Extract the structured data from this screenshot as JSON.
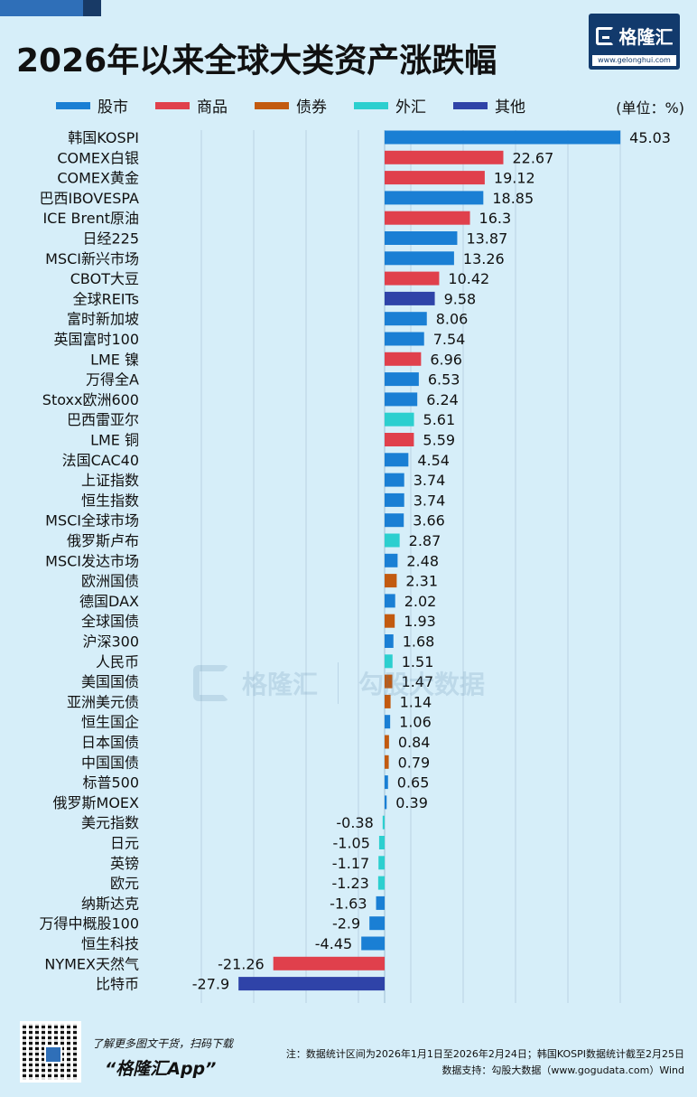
{
  "title": "2026年以来全球大类资产涨跌幅",
  "brand": {
    "name": "格隆汇",
    "url": "www.gelonghui.com"
  },
  "unit": "(单位：%)",
  "legend": [
    {
      "label": "股市",
      "color": "#1a7fd4"
    },
    {
      "label": "商品",
      "color": "#e0404c"
    },
    {
      "label": "债券",
      "color": "#c25a10"
    },
    {
      "label": "外汇",
      "color": "#2ccfcf"
    },
    {
      "label": "其他",
      "color": "#2f43a8"
    }
  ],
  "watermark": {
    "left": "格隆汇",
    "left_url": "www.gelonghui.com",
    "right": "勾股大数据",
    "right_url": "WWW.GOGUDATA.COM"
  },
  "footer": {
    "promo": "了解更多图文干货，扫码下载",
    "app": "“格隆汇App”",
    "note": "注：数据统计区间为2026年1月1日至2026年2月24日；韩国KOSPI数据统计截至2月25日",
    "source": "数据支持：勾股大数据（www.gogudata.com）Wind"
  },
  "chart_data": {
    "type": "bar",
    "orientation": "horizontal",
    "title": "2026年以来全球大类资产涨跌幅",
    "unit": "%",
    "xlim": [
      -35,
      50
    ],
    "grid": true,
    "legend_position": "top",
    "categories": [
      "韩国KOSPI",
      "COMEX白银",
      "COMEX黄金",
      "巴西IBOVESPA",
      "ICE Brent原油",
      "日经225",
      "MSCI新兴市场",
      "CBOT大豆",
      "全球REITs",
      "富时新加坡",
      "英国富时100",
      "LME 镍",
      "万得全A",
      "Stoxx欧洲600",
      "巴西雷亚尔",
      "LME 铜",
      "法国CAC40",
      "上证指数",
      "恒生指数",
      "MSCI全球市场",
      "俄罗斯卢布",
      "MSCI发达市场",
      "欧洲国债",
      "德国DAX",
      "全球国债",
      "沪深300",
      "人民币",
      "美国国债",
      "亚洲美元债",
      "恒生国企",
      "日本国债",
      "中国国债",
      "标普500",
      "俄罗斯MOEX",
      "美元指数",
      "日元",
      "英镑",
      "欧元",
      "纳斯达克",
      "万得中概股100",
      "恒生科技",
      "NYMEX天然气",
      "比特币"
    ],
    "values": [
      45.03,
      22.67,
      19.12,
      18.85,
      16.3,
      13.87,
      13.26,
      10.42,
      9.58,
      8.06,
      7.54,
      6.96,
      6.53,
      6.24,
      5.61,
      5.59,
      4.54,
      3.74,
      3.74,
      3.66,
      2.87,
      2.48,
      2.31,
      2.02,
      1.93,
      1.68,
      1.51,
      1.47,
      1.14,
      1.06,
      0.84,
      0.79,
      0.65,
      0.39,
      -0.38,
      -1.05,
      -1.17,
      -1.23,
      -1.63,
      -2.9,
      -4.45,
      -21.26,
      -27.9
    ],
    "value_labels": [
      "45.03",
      "22.67",
      "19.12",
      "18.85",
      "16.3",
      "13.87",
      "13.26",
      "10.42",
      "9.58",
      "8.06",
      "7.54",
      "6.96",
      "6.53",
      "6.24",
      "5.61",
      "5.59",
      "4.54",
      "3.74",
      "3.74",
      "3.66",
      "2.87",
      "2.48",
      "2.31",
      "2.02",
      "1.93",
      "1.68",
      "1.51",
      "1.47",
      "1.14",
      "1.06",
      "0.84",
      "0.79",
      "0.65",
      "0.39",
      "-0.38",
      "-1.05",
      "-1.17",
      "-1.23",
      "-1.63",
      "-2.9",
      "-4.45",
      "-21.26",
      "-27.9"
    ],
    "groups": [
      "股市",
      "商品",
      "商品",
      "股市",
      "商品",
      "股市",
      "股市",
      "商品",
      "其他",
      "股市",
      "股市",
      "商品",
      "股市",
      "股市",
      "外汇",
      "商品",
      "股市",
      "股市",
      "股市",
      "股市",
      "外汇",
      "股市",
      "债券",
      "股市",
      "债券",
      "股市",
      "外汇",
      "债券",
      "债券",
      "股市",
      "债券",
      "债券",
      "股市",
      "股市",
      "外汇",
      "外汇",
      "外汇",
      "外汇",
      "股市",
      "股市",
      "股市",
      "商品",
      "其他"
    ]
  }
}
